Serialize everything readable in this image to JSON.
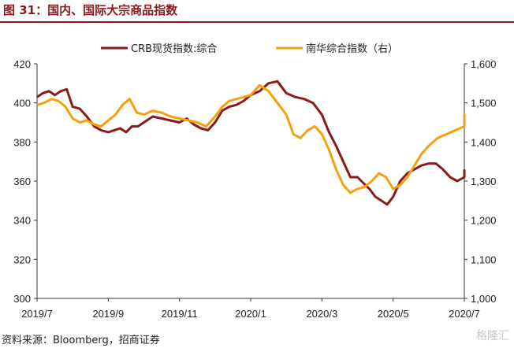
{
  "header": {
    "title": "图 31：国内、国际大宗商品指数"
  },
  "footer": {
    "source": "资料来源：Bloomberg，招商证券",
    "watermark": "格隆汇"
  },
  "colors": {
    "crb": "#8B1A1A",
    "nanhua": "#F5A00C",
    "title": "#8B1A1A"
  },
  "chart_data": {
    "type": "line",
    "x_labels": [
      "2019/7",
      "2019/9",
      "2019/11",
      "2020/1",
      "2020/3",
      "2020/5",
      "2020/7"
    ],
    "x_range": [
      "2019/7",
      "2020/7"
    ],
    "left_axis": {
      "ticks": [
        "300",
        "320",
        "340",
        "360",
        "380",
        "400",
        "420"
      ],
      "ylim": [
        300,
        420
      ]
    },
    "right_axis": {
      "ticks": [
        "1,000",
        "1,100",
        "1,200",
        "1,300",
        "1,400",
        "1,500",
        "1,600"
      ],
      "ylim": [
        1000,
        1600
      ]
    },
    "legend_position": "top",
    "grid": false,
    "series": [
      {
        "name": "CRB现货指数:综合",
        "axis": "left",
        "points": [
          [
            "2019/7",
            403
          ],
          [
            "2019/7",
            405
          ],
          [
            "2019/7",
            406
          ],
          [
            "2019/7",
            404
          ],
          [
            "2019/7",
            406
          ],
          [
            "2019/7",
            407
          ],
          [
            "2019/8",
            398
          ],
          [
            "2019/8",
            397
          ],
          [
            "2019/8",
            393
          ],
          [
            "2019/8",
            388
          ],
          [
            "2019/8",
            386
          ],
          [
            "2019/9",
            385
          ],
          [
            "2019/9",
            386
          ],
          [
            "2019/9",
            387
          ],
          [
            "2019/9",
            385
          ],
          [
            "2019/9",
            388
          ],
          [
            "2019/9",
            388
          ],
          [
            "2019/10",
            390
          ],
          [
            "2019/10",
            393
          ],
          [
            "2019/10",
            392
          ],
          [
            "2019/10",
            391
          ],
          [
            "2019/11",
            390
          ],
          [
            "2019/11",
            392
          ],
          [
            "2019/11",
            389
          ],
          [
            "2019/11",
            387
          ],
          [
            "2019/11",
            386
          ],
          [
            "2019/12",
            390
          ],
          [
            "2019/12",
            396
          ],
          [
            "2019/12",
            398
          ],
          [
            "2019/12",
            399
          ],
          [
            "2019/12",
            401
          ],
          [
            "2020/1",
            404
          ],
          [
            "2020/1",
            406
          ],
          [
            "2020/1",
            410
          ],
          [
            "2020/1",
            411
          ],
          [
            "2020/2",
            405
          ],
          [
            "2020/2",
            403
          ],
          [
            "2020/2",
            402
          ],
          [
            "2020/2",
            400
          ],
          [
            "2020/3",
            394
          ],
          [
            "2020/3",
            385
          ],
          [
            "2020/3",
            378
          ],
          [
            "2020/3",
            370
          ],
          [
            "2020/3",
            362
          ],
          [
            "2020/4",
            362
          ],
          [
            "2020/4",
            359
          ],
          [
            "2020/4",
            356
          ],
          [
            "2020/4",
            352
          ],
          [
            "2020/4",
            350
          ],
          [
            "2020/4",
            348
          ],
          [
            "2020/5",
            352
          ],
          [
            "2020/5",
            360
          ],
          [
            "2020/5",
            364
          ],
          [
            "2020/5",
            366
          ],
          [
            "2020/5",
            368
          ],
          [
            "2020/6",
            369
          ],
          [
            "2020/6",
            369
          ],
          [
            "2020/6",
            366
          ],
          [
            "2020/6",
            362
          ],
          [
            "2020/6",
            360
          ],
          [
            "2020/7",
            362
          ],
          [
            "2020/7",
            363
          ],
          [
            "2020/7",
            364
          ],
          [
            "2020/7",
            366
          ]
        ]
      },
      {
        "name": "南华综合指数（右）",
        "axis": "right",
        "points": [
          [
            "2019/7",
            1495
          ],
          [
            "2019/7",
            1500
          ],
          [
            "2019/7",
            1510
          ],
          [
            "2019/7",
            1505
          ],
          [
            "2019/7",
            1490
          ],
          [
            "2019/8",
            1460
          ],
          [
            "2019/8",
            1450
          ],
          [
            "2019/8",
            1455
          ],
          [
            "2019/8",
            1445
          ],
          [
            "2019/8",
            1440
          ],
          [
            "2019/9",
            1455
          ],
          [
            "2019/9",
            1470
          ],
          [
            "2019/9",
            1495
          ],
          [
            "2019/9",
            1510
          ],
          [
            "2019/9",
            1475
          ],
          [
            "2019/10",
            1470
          ],
          [
            "2019/10",
            1480
          ],
          [
            "2019/10",
            1475
          ],
          [
            "2019/10",
            1465
          ],
          [
            "2019/11",
            1460
          ],
          [
            "2019/11",
            1455
          ],
          [
            "2019/11",
            1450
          ],
          [
            "2019/11",
            1440
          ],
          [
            "2019/12",
            1465
          ],
          [
            "2019/12",
            1490
          ],
          [
            "2019/12",
            1505
          ],
          [
            "2019/12",
            1510
          ],
          [
            "2019/12",
            1515
          ],
          [
            "2020/1",
            1520
          ],
          [
            "2020/1",
            1545
          ],
          [
            "2020/1",
            1530
          ],
          [
            "2020/1",
            1500
          ],
          [
            "2020/2",
            1470
          ],
          [
            "2020/2",
            1420
          ],
          [
            "2020/2",
            1410
          ],
          [
            "2020/2",
            1430
          ],
          [
            "2020/2",
            1440
          ],
          [
            "2020/3",
            1420
          ],
          [
            "2020/3",
            1380
          ],
          [
            "2020/3",
            1330
          ],
          [
            "2020/3",
            1290
          ],
          [
            "2020/3",
            1270
          ],
          [
            "2020/4",
            1280
          ],
          [
            "2020/4",
            1285
          ],
          [
            "2020/4",
            1300
          ],
          [
            "2020/4",
            1320
          ],
          [
            "2020/4",
            1310
          ],
          [
            "2020/5",
            1280
          ],
          [
            "2020/5",
            1290
          ],
          [
            "2020/5",
            1310
          ],
          [
            "2020/5",
            1340
          ],
          [
            "2020/5",
            1370
          ],
          [
            "2020/6",
            1390
          ],
          [
            "2020/6",
            1410
          ],
          [
            "2020/6",
            1420
          ],
          [
            "2020/6",
            1430
          ],
          [
            "2020/7",
            1440
          ],
          [
            "2020/7",
            1450
          ],
          [
            "2020/7",
            1470
          ],
          [
            "2020/7",
            1460
          ]
        ]
      }
    ]
  }
}
